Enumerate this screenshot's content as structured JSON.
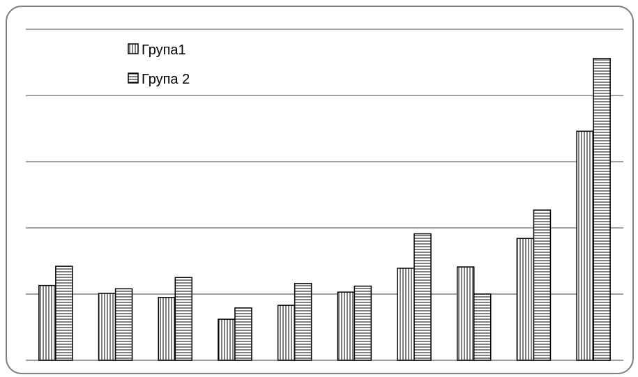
{
  "chart_data": {
    "type": "bar",
    "title": "",
    "xlabel": "",
    "ylabel": "",
    "categories": [
      "",
      "",
      "",
      "",
      "",
      "",
      "",
      "",
      "",
      ""
    ],
    "ylim": [
      0,
      5
    ],
    "grid": true,
    "legend_position": "top-left",
    "series": [
      {
        "name": "Група1",
        "pattern": "vertical-stripes",
        "values": [
          1.13,
          1.01,
          0.95,
          0.62,
          0.83,
          1.03,
          1.39,
          1.41,
          1.84,
          3.46
        ]
      },
      {
        "name": "Група 2",
        "pattern": "horizontal-stripes",
        "values": [
          1.42,
          1.08,
          1.25,
          0.79,
          1.16,
          1.12,
          1.91,
          1.0,
          2.27,
          4.56
        ]
      }
    ]
  },
  "colors": {
    "frame": "#7f7f7f",
    "gridline": "#808080",
    "bar_stroke": "#000000",
    "background": "#ffffff"
  }
}
